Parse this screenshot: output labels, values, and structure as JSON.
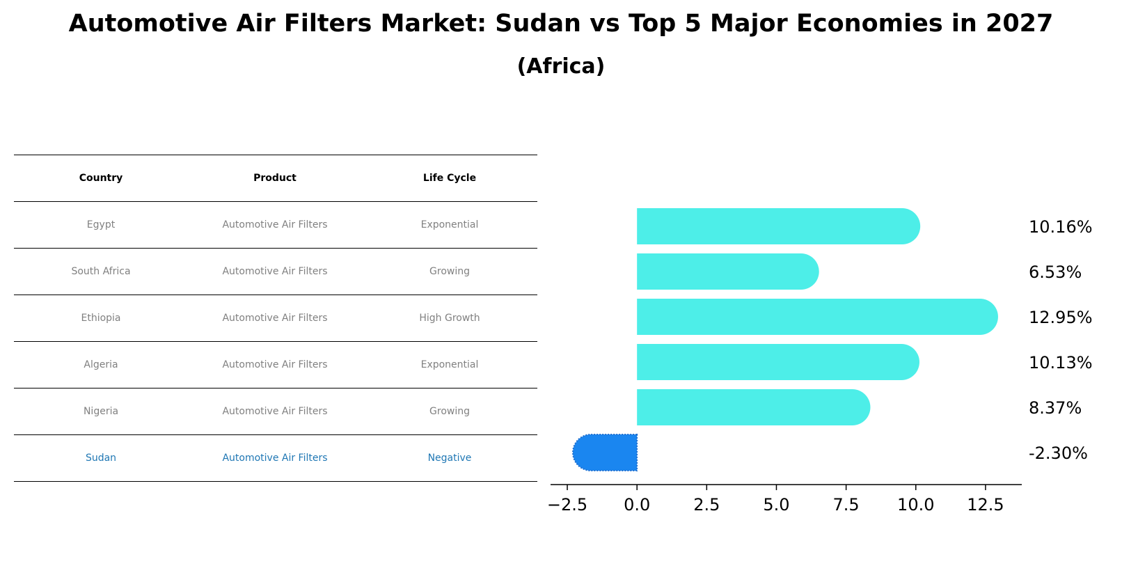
{
  "title": "Automotive Air Filters Market: Sudan vs Top 5 Major Economies in 2027",
  "subtitle": "(Africa)",
  "table": {
    "headers": [
      "Country",
      "Product",
      "Life Cycle"
    ],
    "rows": [
      [
        "Egypt",
        "Automotive Air Filters",
        "Exponential"
      ],
      [
        "South Africa",
        "Automotive Air Filters",
        "Growing"
      ],
      [
        "Ethiopia",
        "Automotive Air Filters",
        "High Growth"
      ],
      [
        "Algeria",
        "Automotive Air Filters",
        "Exponential"
      ],
      [
        "Nigeria",
        "Automotive Air Filters",
        "Growing"
      ],
      [
        "Sudan",
        "Automotive Air Filters",
        "Negative"
      ]
    ]
  },
  "chart_data": {
    "type": "bar",
    "orientation": "horizontal",
    "categories": [
      "Egypt",
      "South Africa",
      "Ethiopia",
      "Algeria",
      "Nigeria",
      "Sudan"
    ],
    "values": [
      10.16,
      6.53,
      12.95,
      10.13,
      8.37,
      -2.3
    ],
    "value_labels": [
      "10.16%",
      "6.53%",
      "12.95%",
      "10.13%",
      "8.37%",
      "-2.30%"
    ],
    "xlim": [
      -3.1,
      13.8
    ],
    "xticks": [
      -2.5,
      0.0,
      2.5,
      5.0,
      7.5,
      10.0,
      12.5
    ],
    "xtick_labels": [
      "−2.5",
      "0.0",
      "2.5",
      "5.0",
      "7.5",
      "10.0",
      "12.5"
    ],
    "colors": {
      "others": "#4deee8",
      "highlight": "#1a86f0"
    },
    "highlight": "Sudan"
  }
}
